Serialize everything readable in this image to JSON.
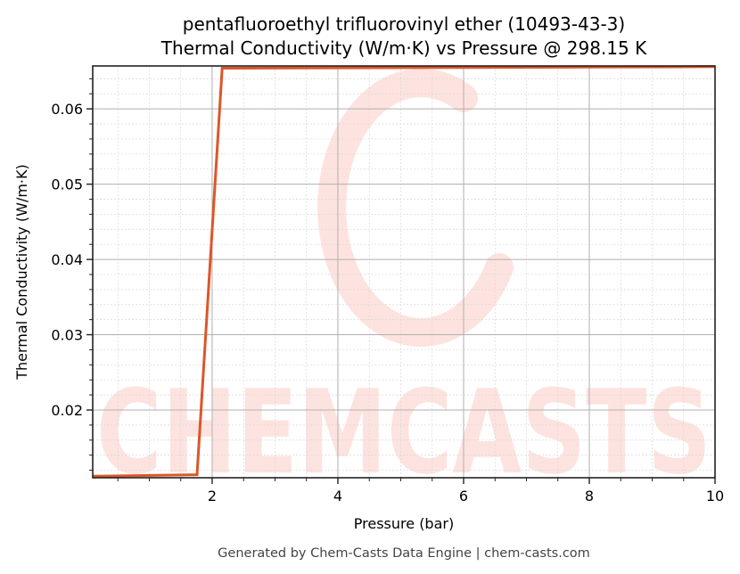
{
  "header": {
    "title_line1": "pentafluoroethyl trifluorovinyl ether (10493-43-3)",
    "title_line2": "Thermal Conductivity (W/m·K) vs Pressure @ 298.15 K"
  },
  "footer": {
    "text": "Generated by Chem-Casts Data Engine | chem-casts.com"
  },
  "watermark": {
    "text": "CHEMCASTS",
    "color": "#fde3df"
  },
  "colors": {
    "line": "#dc5628",
    "axis": "#222222",
    "major_grid": "#b0b0b0",
    "minor_grid": "#d8d8d8"
  },
  "chart_data": {
    "type": "line",
    "title": "pentafluoroethyl trifluorovinyl ether (10493-43-3)\nThermal Conductivity (W/m·K) vs Pressure @ 298.15 K",
    "xlabel": "Pressure (bar)",
    "ylabel": "Thermal Conductivity (W/m·K)",
    "xlim": [
      0.1,
      10
    ],
    "ylim": [
      0.011,
      0.0657
    ],
    "xticks": [
      2,
      4,
      6,
      8,
      10
    ],
    "xtick_labels": [
      "2",
      "4",
      "6",
      "8",
      "10"
    ],
    "yticks": [
      0.02,
      0.03,
      0.04,
      0.05,
      0.06
    ],
    "ytick_labels": [
      "0.02",
      "0.03",
      "0.04",
      "0.05",
      "0.06"
    ],
    "x_minor_step": 0.5,
    "y_minor_step": 0.002,
    "grid": true,
    "legend": null,
    "series": [
      {
        "name": "Thermal Conductivity",
        "x": [
          0.1,
          1.76,
          2.16,
          4.0,
          6.0,
          8.0,
          10.0
        ],
        "y": [
          0.0112,
          0.0114,
          0.0654,
          0.06545,
          0.0655,
          0.06555,
          0.0656
        ]
      }
    ]
  }
}
